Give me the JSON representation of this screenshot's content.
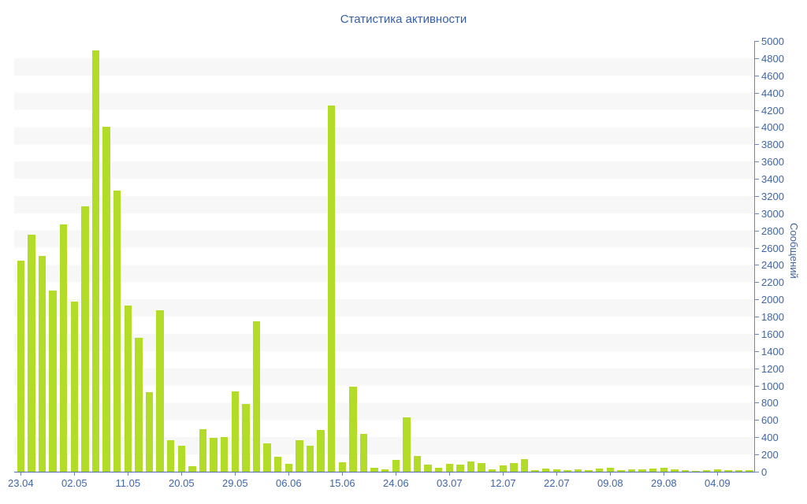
{
  "title": "Статистика активности",
  "colors": {
    "bar": "#b2dc28",
    "axis_line": "#6e88b6",
    "tick": "#6e88b6",
    "text": "#3f66a9",
    "title_text": "#3760a6",
    "stripe": "#f7f7f7",
    "background": "#ffffff"
  },
  "chart_data": {
    "type": "bar",
    "title": "Статистика активности",
    "xlabel": "",
    "ylabel": "Сообщений",
    "ylim": [
      0,
      5000
    ],
    "ytick_step": 200,
    "grid": "horizontal alternating stripe bands, 200 units each",
    "legend": "none",
    "bar_color": "#b2dc28",
    "y_tick_labels": [
      "0",
      "200",
      "400",
      "600",
      "800",
      "1000",
      "1200",
      "1400",
      "1600",
      "1800",
      "2000",
      "2200",
      "2400",
      "2600",
      "2800",
      "3000",
      "3200",
      "3400",
      "3600",
      "3800",
      "4000",
      "4200",
      "4400",
      "4600",
      "4800",
      "5000"
    ],
    "x_tick_labels": [
      "23.04",
      "02.05",
      "11.05",
      "20.05",
      "29.05",
      "06.06",
      "15.06",
      "24.06",
      "03.07",
      "12.07",
      "22.07",
      "09.08",
      "29.08",
      "04.09"
    ],
    "x_label_every_n_bars": 5,
    "values": [
      2450,
      2750,
      2500,
      2100,
      2870,
      1970,
      3080,
      4890,
      4000,
      3260,
      1925,
      1550,
      920,
      1875,
      370,
      300,
      65,
      495,
      395,
      405,
      930,
      785,
      1750,
      330,
      170,
      92,
      370,
      302,
      482,
      4250,
      110,
      990,
      440,
      45,
      25,
      135,
      630,
      183,
      82,
      50,
      90,
      82,
      120,
      98,
      27,
      73,
      100,
      145,
      18,
      36,
      27,
      18,
      27,
      18,
      36,
      46,
      18,
      27,
      27,
      36,
      45,
      27,
      18,
      9,
      18,
      27,
      18,
      18,
      15
    ]
  }
}
